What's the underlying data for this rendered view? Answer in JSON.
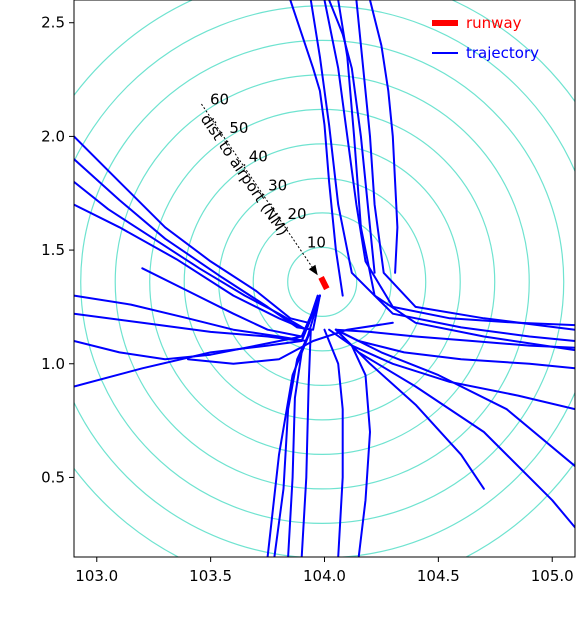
{
  "chart_data": {
    "type": "line",
    "title": "",
    "xlabel": "",
    "ylabel": "",
    "xlim": [
      102.9,
      105.1
    ],
    "ylim": [
      0.15,
      2.6
    ],
    "x_ticks": [
      "103.0",
      "103.5",
      "104.0",
      "104.5",
      "105.0"
    ],
    "x_tick_values": [
      103.0,
      103.5,
      104.0,
      104.5,
      105.0
    ],
    "y_ticks": [
      "0.5",
      "1.0",
      "1.5",
      "2.0",
      "2.5"
    ],
    "y_tick_values": [
      0.5,
      1.0,
      1.5,
      2.0,
      2.5
    ],
    "grid": false,
    "legend": {
      "position": "top-right",
      "entries": [
        {
          "label": "runway",
          "color": "#ff0000"
        },
        {
          "label": "trajectory",
          "color": "#0000ff"
        }
      ]
    },
    "airport": {
      "x": 103.99,
      "y": 1.36
    },
    "range_rings": {
      "unit_label": "dist to airport (NM)",
      "labels": [
        "10",
        "20",
        "30",
        "40",
        "50",
        "60"
      ],
      "radii_nm": [
        10,
        20,
        30,
        40,
        50,
        60
      ],
      "color": "#6fe3d0"
    },
    "runway": {
      "x": [
        103.985,
        104.01
      ],
      "y": [
        1.38,
        1.33
      ]
    },
    "series": [
      {
        "x": [
          103.94,
          103.98,
          104.02,
          104.06,
          104.12,
          104.3,
          104.6,
          104.9,
          105.1
        ],
        "y": [
          2.6,
          2.35,
          2.05,
          1.7,
          1.4,
          1.22,
          1.16,
          1.12,
          1.1
        ]
      },
      {
        "x": [
          104.0,
          104.06,
          104.1,
          104.14,
          104.18,
          104.3,
          104.55,
          104.85,
          105.1
        ],
        "y": [
          2.6,
          2.3,
          2.0,
          1.7,
          1.45,
          1.25,
          1.2,
          1.18,
          1.17
        ]
      },
      {
        "x": [
          104.06,
          104.1,
          104.13,
          104.16,
          104.22,
          104.4,
          104.7,
          105.1
        ],
        "y": [
          2.6,
          2.35,
          2.0,
          1.6,
          1.3,
          1.18,
          1.12,
          1.06
        ]
      },
      {
        "x": [
          104.14,
          104.17,
          104.2,
          104.22,
          104.26,
          104.4,
          104.7,
          105.1
        ],
        "y": [
          2.6,
          2.3,
          2.0,
          1.7,
          1.4,
          1.25,
          1.2,
          1.15
        ]
      },
      {
        "x": [
          104.2,
          104.25,
          104.28,
          104.3,
          104.31,
          104.32,
          104.31
        ],
        "y": [
          2.6,
          2.4,
          2.2,
          2.0,
          1.8,
          1.6,
          1.4
        ]
      },
      {
        "x": [
          103.85,
          103.9,
          103.95,
          103.98,
          104.0,
          104.02,
          104.05,
          104.08
        ],
        "y": [
          2.6,
          2.45,
          2.3,
          2.2,
          2.05,
          1.8,
          1.5,
          1.3
        ]
      },
      {
        "x": [
          104.02,
          104.08,
          104.12,
          104.16,
          104.22
        ],
        "y": [
          2.6,
          2.45,
          2.3,
          2.0,
          1.4
        ]
      },
      {
        "x": [
          102.9,
          103.1,
          103.3,
          103.5,
          103.7,
          103.85,
          103.93,
          103.97
        ],
        "y": [
          2.0,
          1.8,
          1.6,
          1.45,
          1.32,
          1.2,
          1.18,
          1.3
        ]
      },
      {
        "x": [
          102.9,
          103.1,
          103.3,
          103.55,
          103.75,
          103.88,
          103.95,
          103.98
        ],
        "y": [
          1.9,
          1.72,
          1.55,
          1.38,
          1.25,
          1.16,
          1.15,
          1.3
        ]
      },
      {
        "x": [
          102.9,
          103.05,
          103.25,
          103.45,
          103.65,
          103.8,
          103.92,
          103.98
        ],
        "y": [
          1.8,
          1.68,
          1.55,
          1.42,
          1.3,
          1.22,
          1.15,
          1.3
        ]
      },
      {
        "x": [
          102.9,
          103.1,
          103.35,
          103.6,
          103.8,
          103.92,
          103.98
        ],
        "y": [
          1.7,
          1.6,
          1.46,
          1.3,
          1.2,
          1.15,
          1.3
        ]
      },
      {
        "x": [
          102.9,
          103.15,
          103.4,
          103.6,
          103.8,
          103.92,
          103.98
        ],
        "y": [
          1.3,
          1.26,
          1.2,
          1.15,
          1.12,
          1.1,
          1.3
        ]
      },
      {
        "x": [
          102.9,
          103.2,
          103.5,
          103.75,
          103.9,
          103.98
        ],
        "y": [
          1.22,
          1.18,
          1.14,
          1.12,
          1.1,
          1.3
        ]
      },
      {
        "x": [
          102.9,
          103.2,
          103.5,
          103.75,
          103.9,
          103.98
        ],
        "y": [
          0.9,
          0.98,
          1.05,
          1.08,
          1.1,
          1.3
        ]
      },
      {
        "x": [
          102.9,
          103.1,
          103.3,
          103.5,
          103.7,
          103.9,
          103.98
        ],
        "y": [
          1.1,
          1.05,
          1.02,
          1.04,
          1.08,
          1.12,
          1.3
        ]
      },
      {
        "x": [
          103.2,
          103.4,
          103.6,
          103.75,
          103.9,
          103.98
        ],
        "y": [
          1.42,
          1.32,
          1.22,
          1.15,
          1.12,
          1.3
        ]
      },
      {
        "x": [
          103.9,
          103.92,
          103.93,
          103.94
        ],
        "y": [
          0.15,
          0.5,
          0.9,
          1.15
        ]
      },
      {
        "x": [
          103.84,
          103.86,
          103.87,
          103.9,
          103.94
        ],
        "y": [
          0.15,
          0.5,
          0.85,
          1.05,
          1.15
        ]
      },
      {
        "x": [
          103.78,
          103.82,
          103.84,
          103.88,
          103.94
        ],
        "y": [
          0.15,
          0.45,
          0.8,
          1.02,
          1.15
        ]
      },
      {
        "x": [
          104.15,
          104.18,
          104.2,
          104.18,
          104.12,
          104.02
        ],
        "y": [
          0.15,
          0.4,
          0.7,
          0.95,
          1.08,
          1.15
        ]
      },
      {
        "x": [
          104.06,
          104.08,
          104.08,
          104.06,
          104.0
        ],
        "y": [
          0.15,
          0.5,
          0.8,
          1.0,
          1.15
        ]
      },
      {
        "x": [
          104.05,
          104.12,
          104.3,
          104.55,
          104.85,
          105.1
        ],
        "y": [
          1.15,
          1.08,
          1.0,
          0.92,
          0.86,
          0.8
        ]
      },
      {
        "x": [
          104.05,
          104.15,
          104.35,
          104.6,
          104.9,
          105.1
        ],
        "y": [
          1.15,
          1.1,
          1.05,
          1.02,
          1.0,
          0.98
        ]
      },
      {
        "x": [
          104.05,
          104.2,
          104.4,
          104.65,
          104.9,
          105.1
        ],
        "y": [
          1.15,
          1.14,
          1.12,
          1.1,
          1.08,
          1.07
        ]
      },
      {
        "x": [
          104.05,
          104.25,
          104.5,
          104.8,
          105.1
        ],
        "y": [
          1.15,
          1.05,
          0.95,
          0.8,
          0.55
        ]
      },
      {
        "x": [
          104.05,
          104.2,
          104.4,
          104.6,
          104.7
        ],
        "y": [
          1.15,
          1.0,
          0.82,
          0.6,
          0.45
        ]
      },
      {
        "x": [
          104.05,
          104.15,
          104.4,
          104.7,
          105.0,
          105.1
        ],
        "y": [
          1.15,
          1.05,
          0.9,
          0.7,
          0.4,
          0.28
        ]
      },
      {
        "x": [
          103.75,
          103.8,
          103.86,
          103.94
        ],
        "y": [
          0.15,
          0.6,
          0.95,
          1.15
        ]
      },
      {
        "x": [
          103.4,
          103.6,
          103.8,
          103.95,
          104.1,
          104.3
        ],
        "y": [
          1.02,
          1.0,
          1.02,
          1.1,
          1.15,
          1.18
        ]
      }
    ]
  }
}
